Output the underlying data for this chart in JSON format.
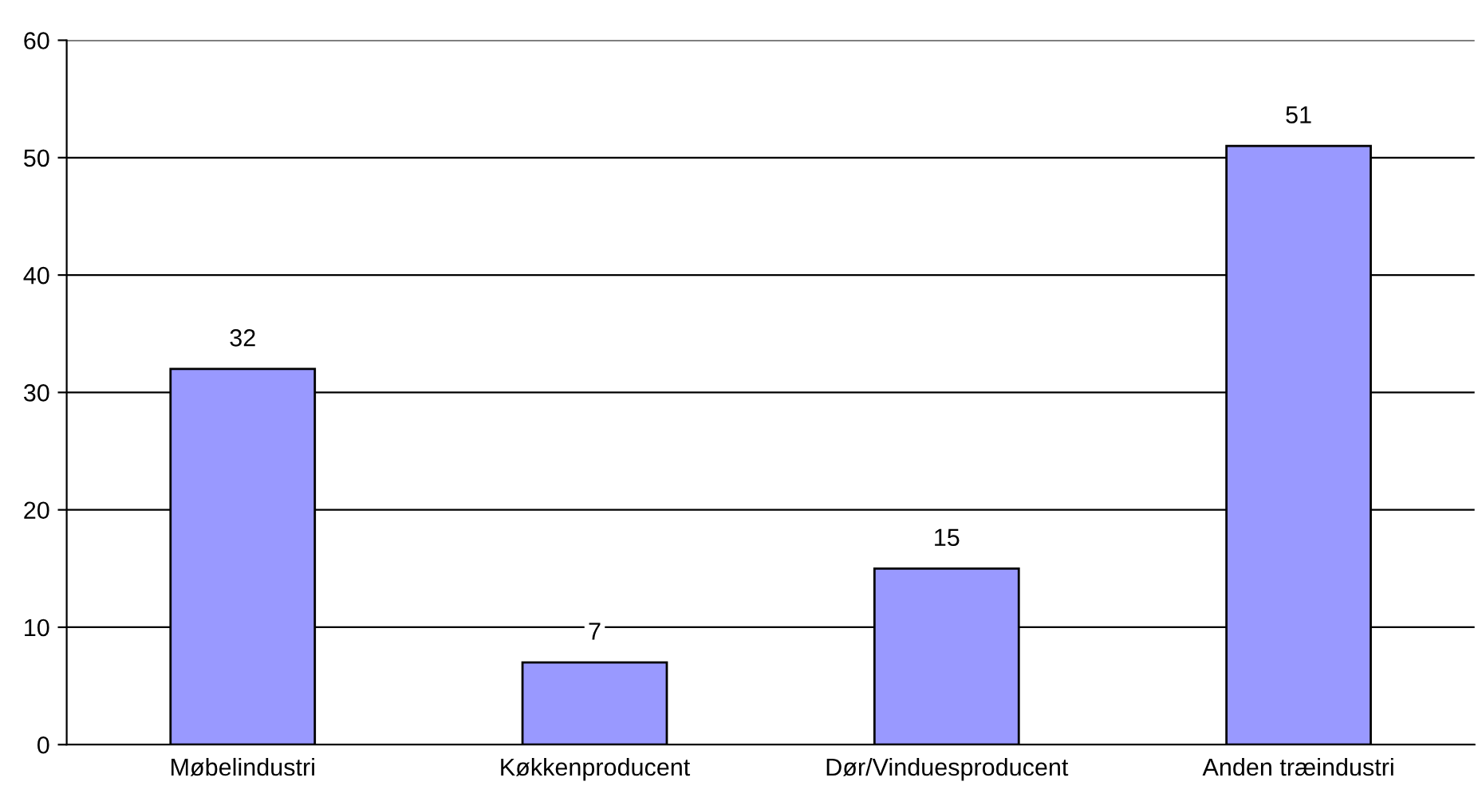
{
  "chart_data": {
    "type": "bar",
    "categories": [
      "Møbelindustri",
      "Køkkenproducent",
      "Dør/Vinduesproducent",
      "Anden træindustri"
    ],
    "values": [
      32,
      7,
      15,
      51
    ],
    "color": "#9999ff",
    "ylim": [
      0,
      60
    ],
    "yticks": [
      0,
      10,
      20,
      30,
      40,
      50,
      60
    ],
    "grid": "y",
    "data_labels": true,
    "legend": false
  }
}
